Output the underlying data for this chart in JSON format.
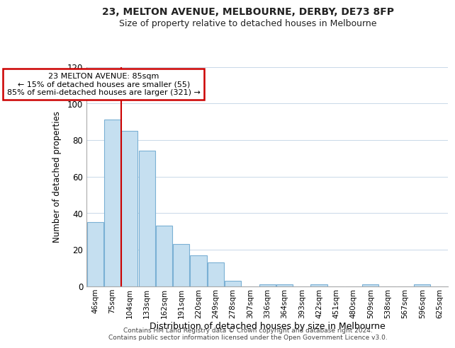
{
  "title": "23, MELTON AVENUE, MELBOURNE, DERBY, DE73 8FP",
  "subtitle": "Size of property relative to detached houses in Melbourne",
  "xlabel": "Distribution of detached houses by size in Melbourne",
  "ylabel": "Number of detached properties",
  "footnote1": "Contains HM Land Registry data © Crown copyright and database right 2024.",
  "footnote2": "Contains public sector information licensed under the Open Government Licence v3.0.",
  "bar_labels": [
    "46sqm",
    "75sqm",
    "104sqm",
    "133sqm",
    "162sqm",
    "191sqm",
    "220sqm",
    "249sqm",
    "278sqm",
    "307sqm",
    "336sqm",
    "364sqm",
    "393sqm",
    "422sqm",
    "451sqm",
    "480sqm",
    "509sqm",
    "538sqm",
    "567sqm",
    "596sqm",
    "625sqm"
  ],
  "bar_values": [
    35,
    91,
    85,
    74,
    33,
    23,
    17,
    13,
    3,
    0,
    1,
    1,
    0,
    1,
    0,
    0,
    1,
    0,
    0,
    1,
    0
  ],
  "bar_color": "#c5dff0",
  "bar_edge_color": "#7ab0d4",
  "ylim": [
    0,
    120
  ],
  "yticks": [
    0,
    20,
    40,
    60,
    80,
    100,
    120
  ],
  "property_line_x": 1.5,
  "annotation_title": "23 MELTON AVENUE: 85sqm",
  "annotation_line1": "← 15% of detached houses are smaller (55)",
  "annotation_line2": "85% of semi-detached houses are larger (321) →",
  "annotation_box_color": "#ffffff",
  "annotation_border_color": "#cc0000",
  "property_line_color": "#cc0000",
  "background_color": "#ffffff",
  "grid_color": "#c8d8e8",
  "title_fontsize": 10,
  "subtitle_fontsize": 9
}
